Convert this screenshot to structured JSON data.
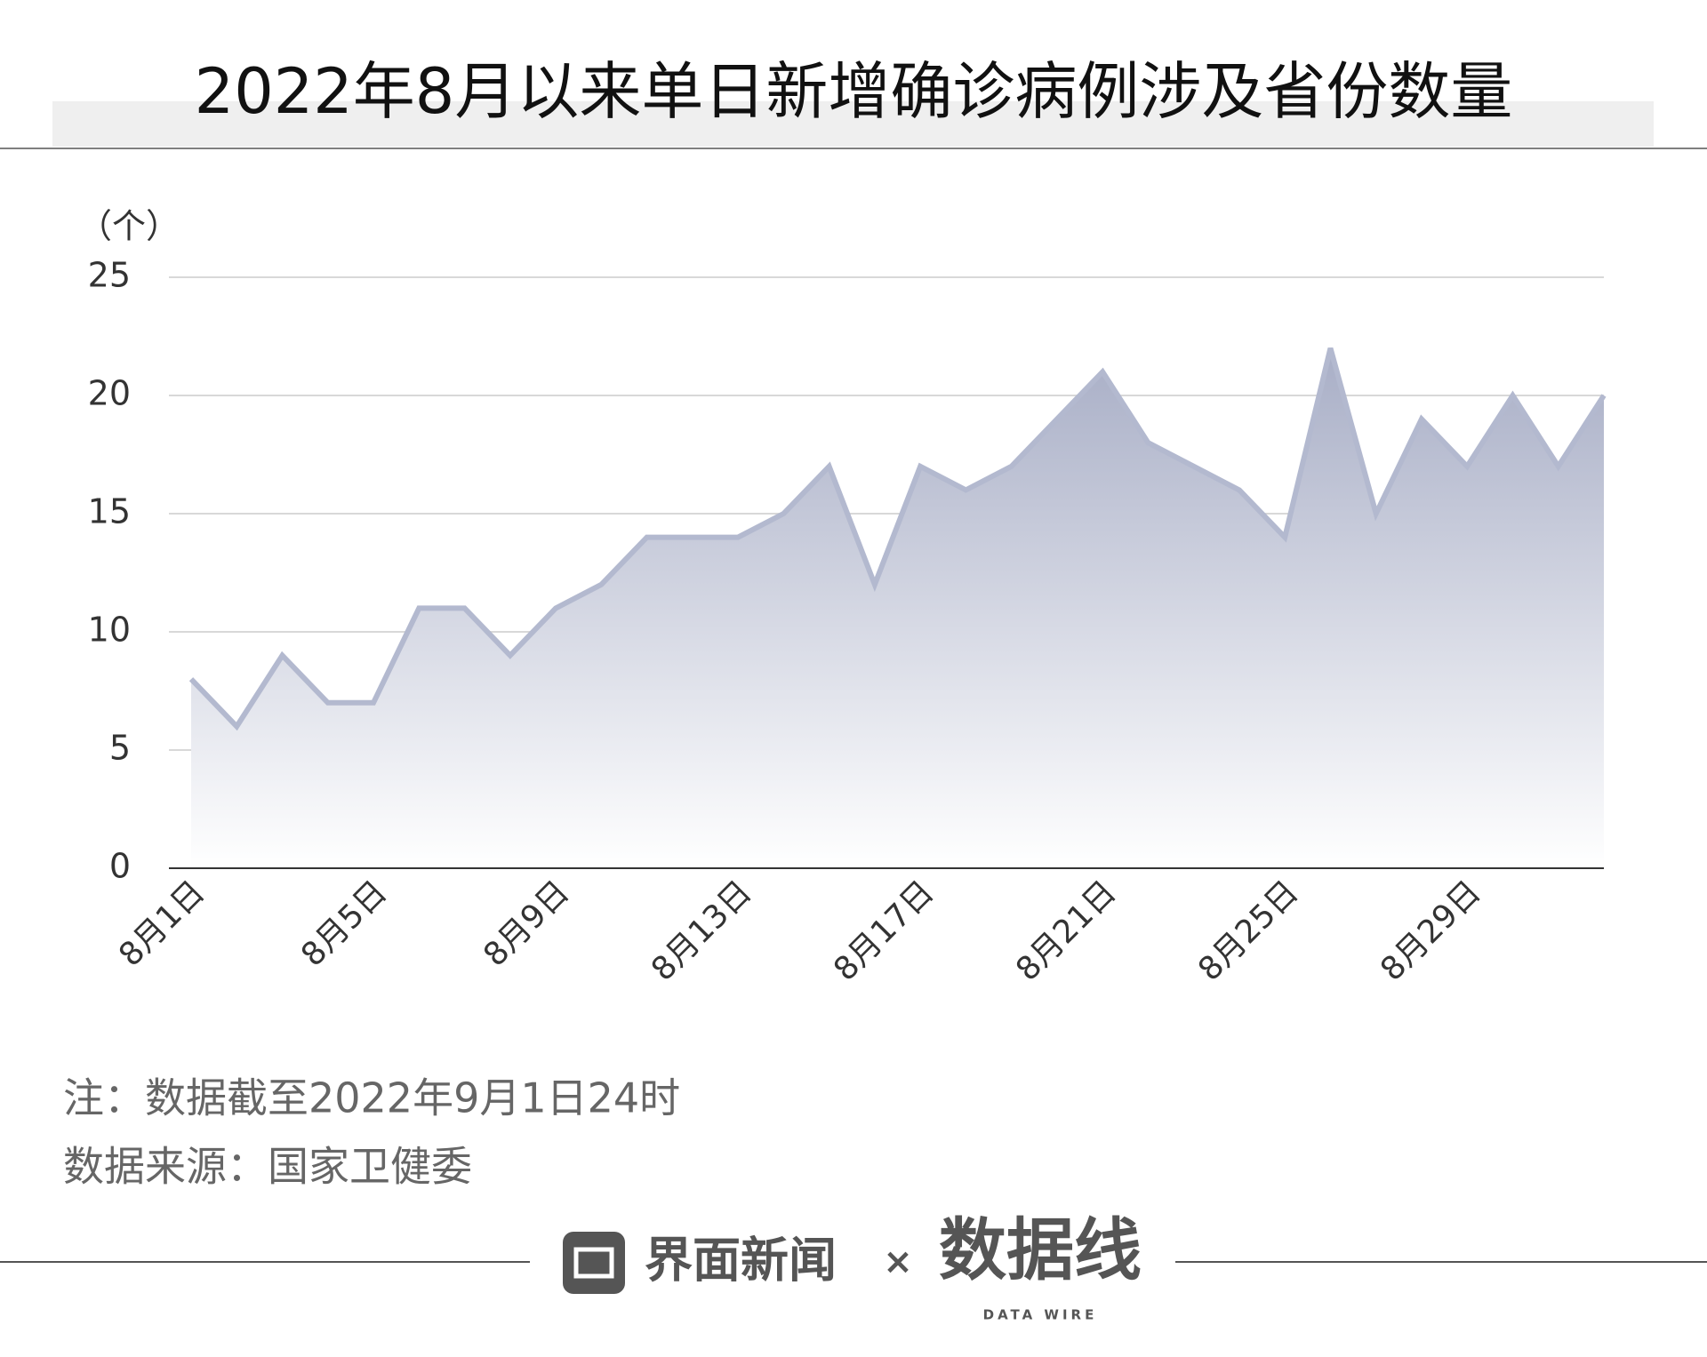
{
  "chart_data": {
    "type": "area",
    "title": "2022年8月以来单日新增确诊病例涉及省份数量",
    "y_unit": "（个）",
    "categories": [
      "8月1日",
      null,
      null,
      null,
      "8月5日",
      null,
      null,
      null,
      "8月9日",
      null,
      null,
      null,
      "8月13日",
      null,
      null,
      null,
      "8月17日",
      null,
      null,
      null,
      "8月21日",
      null,
      null,
      null,
      "8月25日",
      null,
      null,
      null,
      "8月29日",
      null,
      null,
      null
    ],
    "values": [
      8,
      6,
      9,
      7,
      7,
      11,
      11,
      9,
      11,
      12,
      14,
      14,
      14,
      15,
      17,
      12,
      17,
      16,
      17,
      19,
      21,
      18,
      17,
      16,
      14,
      22,
      15,
      19,
      17,
      20,
      17,
      20
    ],
    "color": "#b3b9cf",
    "ylim": [
      0,
      25
    ],
    "yticks": [
      0,
      5,
      10,
      15,
      20,
      25
    ],
    "grid": true,
    "notes": [
      "注：数据截至2022年9月1日24时",
      "数据来源：国家卫健委"
    ]
  },
  "footer": {
    "brand": "界面新闻",
    "times": "×",
    "partner": "数据线",
    "partner_sub": "DATA WIRE"
  }
}
